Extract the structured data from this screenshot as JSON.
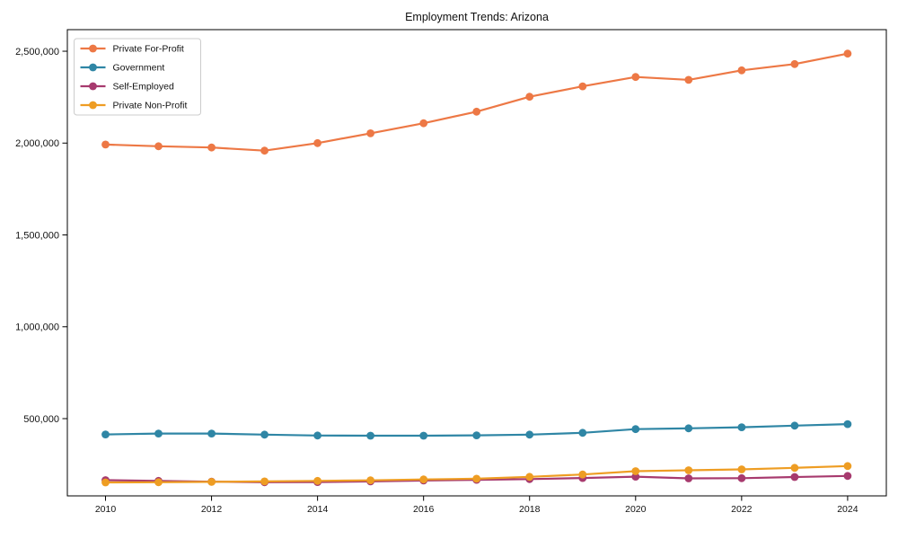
{
  "chart_data": {
    "type": "line",
    "title": "Employment Trends: Arizona",
    "xlabel": "",
    "ylabel": "",
    "x": [
      2010,
      2011,
      2012,
      2013,
      2014,
      2015,
      2016,
      2017,
      2018,
      2019,
      2020,
      2021,
      2022,
      2023,
      2024
    ],
    "series": [
      {
        "name": "Private For-Profit",
        "color": "#ed7845",
        "values": [
          1992000,
          1983000,
          1976000,
          1959000,
          2000000,
          2053000,
          2108000,
          2171000,
          2252000,
          2309000,
          2360000,
          2344000,
          2396000,
          2430000,
          2487000
        ]
      },
      {
        "name": "Government",
        "color": "#2f86a5",
        "values": [
          414000,
          419000,
          419000,
          413000,
          408000,
          407000,
          407000,
          409000,
          413000,
          423000,
          443000,
          447000,
          453000,
          462000,
          470000
        ]
      },
      {
        "name": "Self-Employed",
        "color": "#a73a6e",
        "values": [
          165000,
          161000,
          157000,
          154000,
          155000,
          158000,
          163000,
          167000,
          171000,
          177000,
          184000,
          175000,
          176000,
          182000,
          188000
        ]
      },
      {
        "name": "Private Non-Profit",
        "color": "#ee9d23",
        "values": [
          153000,
          154000,
          156000,
          158000,
          161000,
          164000,
          169000,
          173000,
          183000,
          196000,
          214000,
          219000,
          224000,
          232000,
          242000
        ]
      }
    ],
    "xticks": [
      2010,
      2012,
      2014,
      2016,
      2018,
      2020,
      2022,
      2024
    ],
    "yticks": [
      500000,
      1000000,
      1500000,
      2000000,
      2500000
    ],
    "ytick_labels": [
      "500,000",
      "1,000,000",
      "1,500,000",
      "2,000,000",
      "2,500,000"
    ],
    "xlim": [
      2009.28,
      2024.73
    ],
    "ylim": [
      79500,
      2617500
    ],
    "grid": false,
    "legend_position": "upper left",
    "legend_labels": [
      "Private For-Profit",
      "Government",
      "Self-Employed",
      "Private Non-Profit"
    ]
  },
  "colors": {
    "spine": "#000000",
    "tick": "#000000",
    "legend_border": "#cccccc",
    "background": "#ffffff"
  }
}
